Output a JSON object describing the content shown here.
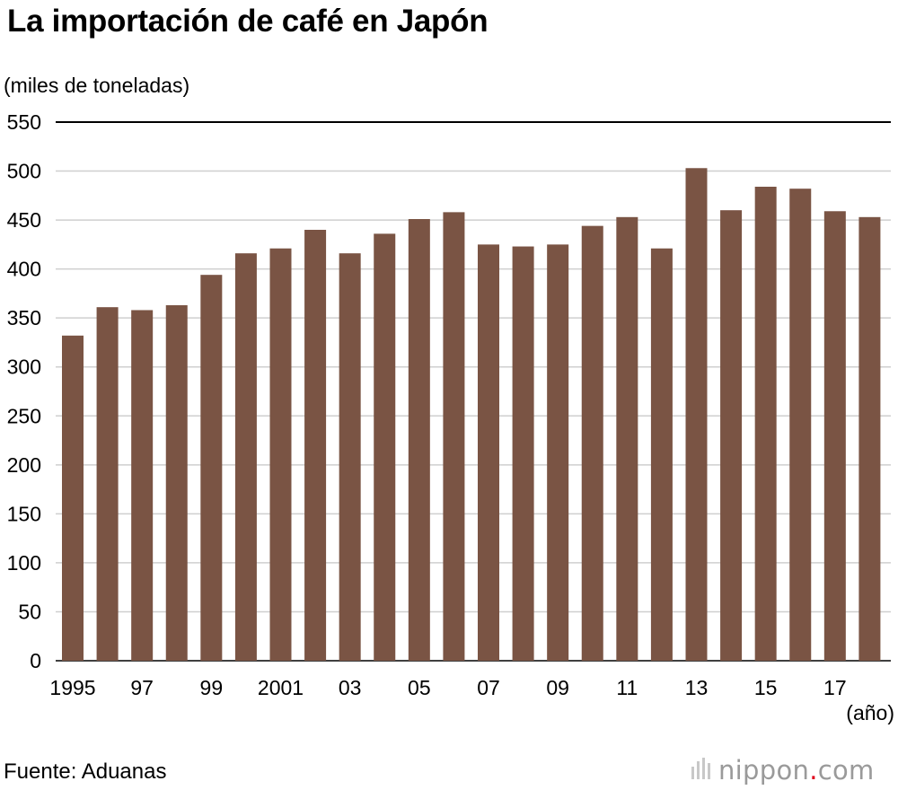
{
  "chart_data": {
    "type": "bar",
    "title": "La importación de café en Japón",
    "ylabel": "(miles de toneladas)",
    "xlabel": "(año)",
    "categories": [
      "1995",
      "1996",
      "1997",
      "1998",
      "1999",
      "2000",
      "2001",
      "2002",
      "2003",
      "2004",
      "2005",
      "2006",
      "2007",
      "2008",
      "2009",
      "2010",
      "2011",
      "2012",
      "2013",
      "2014",
      "2015",
      "2016",
      "2017",
      "2018"
    ],
    "x_tick_labels": [
      "1995",
      "",
      "97",
      "",
      "99",
      "",
      "2001",
      "",
      "03",
      "",
      "05",
      "",
      "07",
      "",
      "09",
      "",
      "11",
      "",
      "13",
      "",
      "15",
      "",
      "17",
      ""
    ],
    "values": [
      332,
      361,
      358,
      363,
      394,
      416,
      421,
      440,
      416,
      436,
      451,
      458,
      425,
      423,
      425,
      444,
      453,
      421,
      503,
      460,
      484,
      482,
      459,
      453
    ],
    "ylim": [
      0,
      550
    ],
    "yticks": [
      0,
      50,
      100,
      150,
      200,
      250,
      300,
      350,
      400,
      450,
      500,
      550
    ],
    "grid": true,
    "legend": "none",
    "bar_color": "#7a5444",
    "grid_color": "#cfcfcf",
    "top_line_color": "#000000"
  },
  "footer": {
    "source": "Fuente: Aduanas",
    "brand_name": "nippon",
    "brand_dot": ".",
    "brand_tld": "com"
  },
  "icons": {
    "brand_logo": "nippon-bars-icon"
  }
}
